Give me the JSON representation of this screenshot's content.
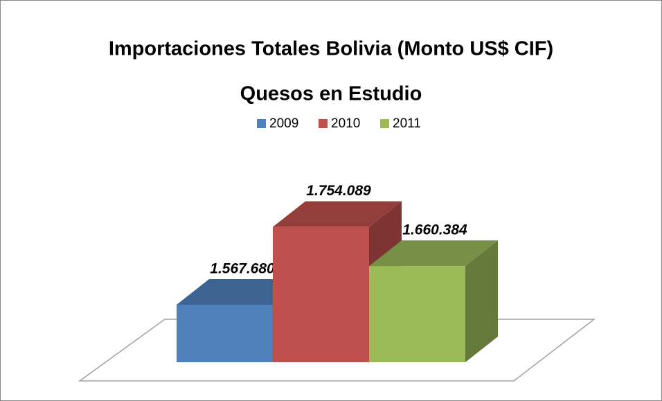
{
  "chart_data": {
    "type": "bar",
    "title": "Importaciones Totales Bolivia (Monto US$ CIF)",
    "subtitle": "Quesos en Estudio",
    "categories": [
      null
    ],
    "series": [
      {
        "name": "2009",
        "color": "#4f81bd",
        "values": [
          1567680
        ],
        "value_labels": [
          "1.567.680"
        ]
      },
      {
        "name": "2010",
        "color": "#c0504d",
        "values": [
          1754089
        ],
        "value_labels": [
          "1.754.089"
        ]
      },
      {
        "name": "2011",
        "color": "#9bbb59",
        "values": [
          1660384
        ],
        "value_labels": [
          "1.660.384"
        ]
      }
    ],
    "ylim": [
      1430000,
      1800000
    ],
    "legend": "top"
  }
}
